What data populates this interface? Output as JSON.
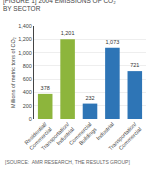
{
  "chart_data": {
    "type": "bar",
    "title": "[FIGURE 1] 2004 EMISSIONS OF CO₂",
    "subtitle": "BY SECTOR",
    "categories": [
      "Residential/\nCommercial",
      "Transportation/\nIndustrial",
      "Commercial\nBuildings",
      "Industrial",
      "Transportation/\nCommercial"
    ],
    "values": [
      378,
      1201,
      232,
      1073,
      721
    ],
    "value_labels": [
      "378",
      "1,201",
      "232",
      "1,073",
      "721"
    ],
    "data_labels": true,
    "colors": [
      "#8db53c",
      "#8db53c",
      "#2e75b6",
      "#2e75b6",
      "#2e75b6"
    ],
    "ylabel": "Millions of metric tons of CO₂",
    "ylim": [
      0,
      1400
    ],
    "yticks": [
      0,
      200,
      400,
      600,
      800,
      {
        "value": 1000,
        "label": "1,000"
      },
      {
        "value": 1200,
        "label": "1,200"
      },
      {
        "value": 1400,
        "label": "1,400"
      }
    ],
    "grid": true,
    "annotations": [
      "[SOURCE:  AMR RESEARCH, THE RESULTS GROUP]"
    ]
  }
}
